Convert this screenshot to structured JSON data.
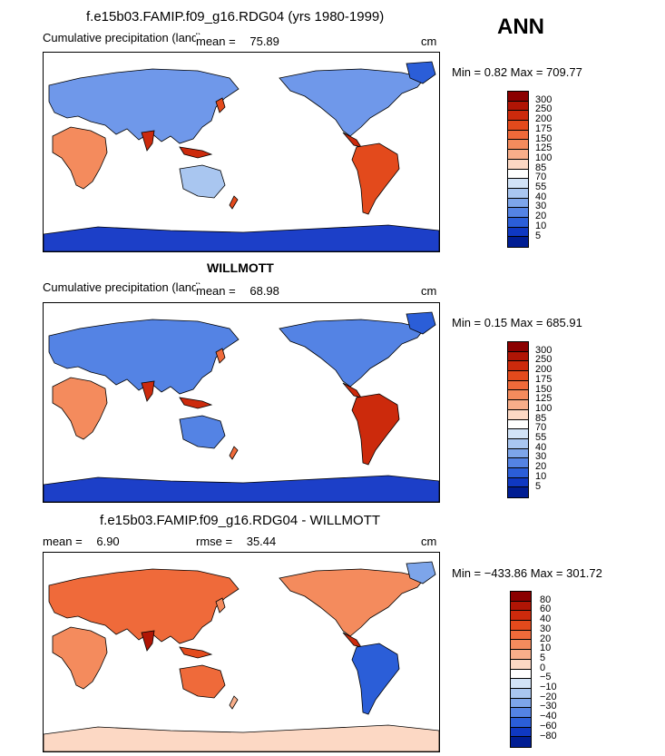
{
  "annual_label": "ANN",
  "panels": [
    {
      "title": "f.e15b03.FAMIP.f09_g16.RDG04 (yrs 1980-1999)",
      "left_label": "Cumulative precipitation (land)",
      "mean_label": "mean =",
      "mean_value": "75.89",
      "units": "cm",
      "minmax": "Min =   0.82 Max = 709.77",
      "colorbar_labels": [
        "300",
        "250",
        "200",
        "175",
        "150",
        "125",
        "100",
        "85",
        "70",
        "55",
        "40",
        "30",
        "20",
        "10",
        "5"
      ]
    },
    {
      "title": "WILLMOTT",
      "left_label": "Cumulative precipitation (land)",
      "mean_label": "mean =",
      "mean_value": "68.98",
      "units": "cm",
      "minmax": "Min =   0.15 Max = 685.91",
      "colorbar_labels": [
        "300",
        "250",
        "200",
        "175",
        "150",
        "125",
        "100",
        "85",
        "70",
        "55",
        "40",
        "30",
        "20",
        "10",
        "5"
      ]
    },
    {
      "title": "f.e15b03.FAMIP.f09_g16.RDG04 - WILLMOTT",
      "mean_label": "mean =",
      "mean_value": "6.90",
      "rmse_label": "rmse =",
      "rmse_value": "35.44",
      "units": "cm",
      "minmax": "Min = −433.86 Max = 301.72",
      "colorbar_labels": [
        "80",
        "60",
        "40",
        "30",
        "20",
        "10",
        "5",
        "0",
        "−5",
        "−10",
        "−20",
        "−30",
        "−40",
        "−60",
        "−80"
      ]
    }
  ],
  "colors": {
    "abs_scale": [
      "#8b0000",
      "#b01505",
      "#cc2a0c",
      "#e34a1c",
      "#ef6a3a",
      "#f48b5d",
      "#f8ae8a",
      "#fcd8c4",
      "#ffffff",
      "#d2e3f7",
      "#a9c6f0",
      "#7da5ea",
      "#5483e4",
      "#2b5ed8",
      "#0f38c2",
      "#001d93"
    ],
    "diff_scale": [
      "#8b0000",
      "#b01505",
      "#cc2a0c",
      "#e34a1c",
      "#ef6a3a",
      "#f48b5d",
      "#f8ae8a",
      "#fcd8c4",
      "#ffffff",
      "#d2e3f7",
      "#a9c6f0",
      "#7da5ea",
      "#5483e4",
      "#2b5ed8",
      "#0f38c2",
      "#001d93"
    ]
  }
}
